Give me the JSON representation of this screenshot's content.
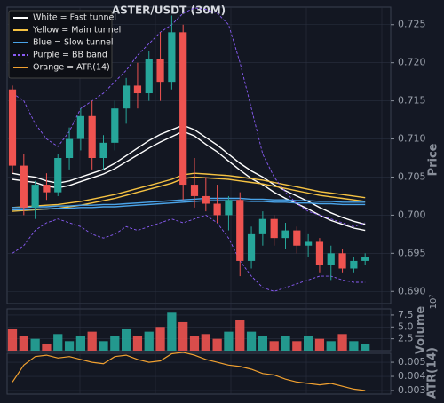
{
  "chart_data": [
    {
      "type": "candlestick",
      "title": "ASTER/USDT (30M)",
      "y_label": "Price",
      "ylim": [
        0.6884,
        0.7273
      ],
      "yticks": [
        {
          "value": 0.69,
          "label": "0.690"
        },
        0.695,
        {
          "value": 0.7,
          "label": "0.700"
        },
        0.705,
        {
          "value": 0.71,
          "label": "0.710"
        },
        0.715,
        {
          "value": 0.72,
          "label": "0.720"
        },
        0.725
      ],
      "up_color": "#26a69a",
      "down_color": "#ef5350",
      "grid": true,
      "open": [
        0.7165,
        0.7065,
        0.701,
        0.704,
        0.703,
        0.7075,
        0.71,
        0.713,
        0.7075,
        0.7095,
        0.714,
        0.717,
        0.716,
        0.7205,
        0.7175,
        0.724,
        0.704,
        0.7025,
        0.7015,
        0.7,
        0.702,
        0.694,
        0.6975,
        0.6995,
        0.697,
        0.698,
        0.696,
        0.6965,
        0.6935,
        0.695,
        0.693,
        0.694
      ],
      "high": [
        0.717,
        0.708,
        0.7045,
        0.7055,
        0.708,
        0.7115,
        0.714,
        0.715,
        0.7105,
        0.715,
        0.718,
        0.72,
        0.7215,
        0.724,
        0.7262,
        0.725,
        0.7075,
        0.705,
        0.704,
        0.7025,
        0.703,
        0.6985,
        0.7005,
        0.7,
        0.699,
        0.6985,
        0.6975,
        0.697,
        0.696,
        0.6955,
        0.6945,
        0.695
      ],
      "low": [
        0.7055,
        0.7,
        0.6995,
        0.702,
        0.7025,
        0.706,
        0.7085,
        0.706,
        0.706,
        0.7085,
        0.712,
        0.714,
        0.715,
        0.715,
        0.7165,
        0.702,
        0.701,
        0.7005,
        0.699,
        0.698,
        0.692,
        0.693,
        0.696,
        0.696,
        0.6955,
        0.695,
        0.6945,
        0.6925,
        0.6915,
        0.6925,
        0.6925,
        0.6935
      ],
      "close": [
        0.7065,
        0.701,
        0.704,
        0.703,
        0.7075,
        0.71,
        0.713,
        0.7075,
        0.7095,
        0.714,
        0.717,
        0.716,
        0.7205,
        0.7175,
        0.724,
        0.704,
        0.7025,
        0.7015,
        0.7,
        0.702,
        0.694,
        0.6975,
        0.6995,
        0.697,
        0.698,
        0.696,
        0.6965,
        0.6935,
        0.695,
        0.693,
        0.694,
        0.6945
      ],
      "bands": [
        {
          "name": "White = Fast tunnel",
          "color": "#ffffff",
          "dashed": false,
          "upper": [
            0.7055,
            0.7052,
            0.705,
            0.7045,
            0.7042,
            0.7045,
            0.705,
            0.7055,
            0.706,
            0.7068,
            0.7078,
            0.7088,
            0.7098,
            0.7106,
            0.7112,
            0.7118,
            0.7112,
            0.7102,
            0.7092,
            0.708,
            0.7068,
            0.7058,
            0.705,
            0.704,
            0.7032,
            0.7025,
            0.7018,
            0.701,
            0.7003,
            0.6997,
            0.6992,
            0.6988
          ],
          "lower": [
            0.7047,
            0.7045,
            0.7043,
            0.7038,
            0.7036,
            0.7039,
            0.7044,
            0.7049,
            0.7054,
            0.7061,
            0.707,
            0.7079,
            0.7088,
            0.7096,
            0.7103,
            0.711,
            0.7104,
            0.7093,
            0.7083,
            0.7071,
            0.7059,
            0.7048,
            0.704,
            0.703,
            0.7022,
            0.7015,
            0.7008,
            0.7,
            0.6993,
            0.6988,
            0.6983,
            0.698
          ]
        },
        {
          "name": "Yellow = Main tunnel",
          "color": "#f5c242",
          "dashed": false,
          "upper": [
            0.701,
            0.7011,
            0.7012,
            0.7013,
            0.7014,
            0.7016,
            0.7018,
            0.7021,
            0.7024,
            0.7027,
            0.7031,
            0.7035,
            0.7039,
            0.7043,
            0.7047,
            0.7053,
            0.7055,
            0.7054,
            0.7053,
            0.7052,
            0.705,
            0.7048,
            0.7046,
            0.7043,
            0.704,
            0.7037,
            0.7034,
            0.7031,
            0.7029,
            0.7027,
            0.7025,
            0.7023
          ],
          "lower": [
            0.7005,
            0.7006,
            0.7007,
            0.7008,
            0.7009,
            0.7011,
            0.7013,
            0.7016,
            0.7019,
            0.7022,
            0.7026,
            0.703,
            0.7034,
            0.7038,
            0.7042,
            0.7048,
            0.705,
            0.7049,
            0.7048,
            0.7047,
            0.7045,
            0.7043,
            0.7041,
            0.7038,
            0.7035,
            0.7032,
            0.7029,
            0.7026,
            0.7024,
            0.7022,
            0.702,
            0.7018
          ]
        },
        {
          "name": "Blue = Slow tunnel",
          "color": "#4aa3e8",
          "dashed": false,
          "upper": [
            0.701,
            0.701,
            0.7011,
            0.7011,
            0.7012,
            0.7012,
            0.7013,
            0.7013,
            0.7014,
            0.7014,
            0.7015,
            0.7016,
            0.7017,
            0.7018,
            0.7019,
            0.702,
            0.7021,
            0.7022,
            0.7022,
            0.7022,
            0.7022,
            0.7021,
            0.7021,
            0.702,
            0.702,
            0.7019,
            0.7019,
            0.7018,
            0.7018,
            0.7017,
            0.7017,
            0.7017
          ],
          "lower": [
            0.7007,
            0.7007,
            0.7008,
            0.7008,
            0.7009,
            0.7009,
            0.701,
            0.701,
            0.7011,
            0.7011,
            0.7012,
            0.7013,
            0.7014,
            0.7015,
            0.7016,
            0.7017,
            0.7018,
            0.7019,
            0.7019,
            0.7019,
            0.7019,
            0.7018,
            0.7018,
            0.7017,
            0.7017,
            0.7016,
            0.7016,
            0.7015,
            0.7015,
            0.7014,
            0.7014,
            0.7014
          ]
        },
        {
          "name": "Purple = BB band",
          "color": "#8a5cf6",
          "dashed": true,
          "upper": [
            0.716,
            0.715,
            0.712,
            0.71,
            0.709,
            0.711,
            0.714,
            0.715,
            0.716,
            0.7175,
            0.719,
            0.721,
            0.7225,
            0.724,
            0.725,
            0.7265,
            0.7272,
            0.727,
            0.7265,
            0.725,
            0.72,
            0.714,
            0.708,
            0.705,
            0.703,
            0.7015,
            0.7005,
            0.7,
            0.6995,
            0.699,
            0.6985,
            0.699
          ],
          "lower": [
            0.695,
            0.696,
            0.698,
            0.699,
            0.6995,
            0.699,
            0.6985,
            0.6975,
            0.697,
            0.6975,
            0.6985,
            0.698,
            0.6985,
            0.699,
            0.6995,
            0.699,
            0.6995,
            0.7,
            0.699,
            0.697,
            0.694,
            0.692,
            0.6905,
            0.69,
            0.6905,
            0.691,
            0.6915,
            0.692,
            0.692,
            0.6915,
            0.6912,
            0.6912
          ]
        }
      ]
    },
    {
      "type": "bar",
      "y_label": "Volume",
      "exponent_label": "10⁷",
      "ylim": [
        0,
        8.8
      ],
      "yticks": [
        2.5,
        {
          "value": 5,
          "label": "5.0"
        },
        7.5
      ],
      "grid": true,
      "values": [
        4.5,
        3,
        2.5,
        1.5,
        3.5,
        2,
        3,
        4,
        2,
        3,
        4.5,
        3,
        4,
        5,
        8,
        6,
        3,
        3.5,
        2.5,
        4,
        6.5,
        4,
        3,
        2,
        3,
        2,
        3,
        2.5,
        2,
        3.5,
        2,
        1.5
      ]
    },
    {
      "type": "line",
      "y_label": "ATR(14)",
      "ylim": [
        0.00275,
        0.00563
      ],
      "yticks": [
        0.003,
        0.004,
        0.005
      ],
      "grid": true,
      "series": [
        {
          "name": "Orange = ATR(14)",
          "color": "#f0a030",
          "values": [
            0.0036,
            0.0048,
            0.0054,
            0.0055,
            0.0053,
            0.0054,
            0.0052,
            0.005,
            0.0049,
            0.0054,
            0.0055,
            0.0052,
            0.005,
            0.0051,
            0.0056,
            0.0057,
            0.0055,
            0.0052,
            0.005,
            0.0048,
            0.0047,
            0.0045,
            0.0042,
            0.0041,
            0.0038,
            0.0036,
            0.0035,
            0.0034,
            0.0035,
            0.0033,
            0.0031,
            0.003
          ]
        }
      ]
    }
  ]
}
